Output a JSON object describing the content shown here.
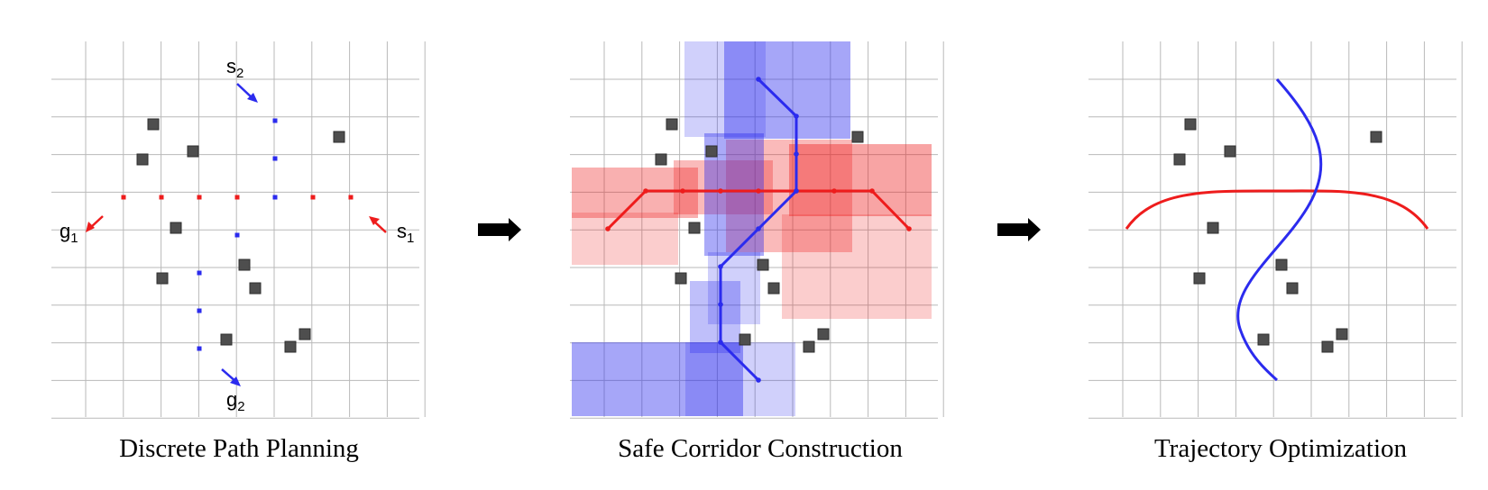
{
  "captions": {
    "panel1": "Discrete Path Planning",
    "panel2": "Safe Corridor Construction",
    "panel3": "Trajectory Optimization"
  },
  "labels": {
    "s1": {
      "letter": "s",
      "index": "1"
    },
    "s2": {
      "letter": "s",
      "index": "2"
    },
    "g1": {
      "letter": "g",
      "index": "1"
    },
    "g2": {
      "letter": "g",
      "index": "2"
    }
  },
  "colors": {
    "agent1": "#ee1c1c",
    "agent2": "#2b2bee",
    "grid": "#b9b9b9",
    "obstacle": "#4e4e4e",
    "arrow": "#000000"
  }
}
